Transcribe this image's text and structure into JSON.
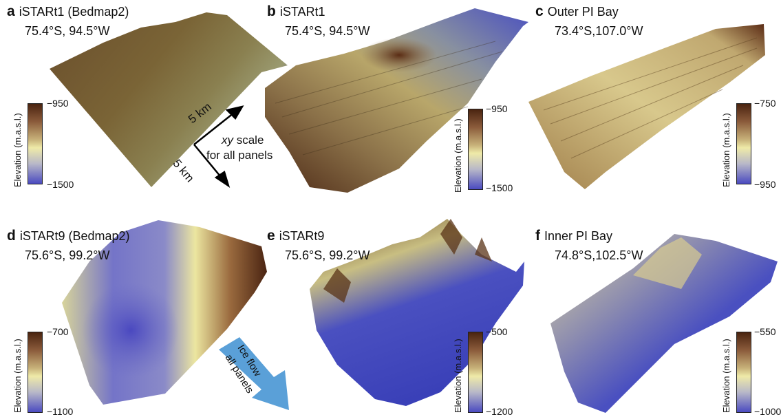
{
  "panels": [
    {
      "letter": "a",
      "title": "iSTARt1 (Bedmap2)",
      "coords": "75.4°S, 94.5°W",
      "cmax": "−950",
      "cmin": "−1500",
      "ylabel": "Elevation (m.a.s.l.)"
    },
    {
      "letter": "b",
      "title": "iSTARt1",
      "coords": "75.4°S, 94.5°W",
      "cmax": "−950",
      "cmin": "−1500",
      "ylabel": "Elevation (m.a.s.l.)"
    },
    {
      "letter": "c",
      "title": "Outer PI Bay",
      "coords": "73.4°S,107.0°W",
      "cmax": "−750",
      "cmin": "−950",
      "ylabel": "Elevation (m.a.s.l.)"
    },
    {
      "letter": "d",
      "title": "iSTARt9 (Bedmap2)",
      "coords": "75.6°S, 99.2°W",
      "cmax": "−700",
      "cmin": "−1100",
      "ylabel": "Elevation (m.a.s.l.)"
    },
    {
      "letter": "e",
      "title": "iSTARt9",
      "coords": "75.6°S, 99.2°W",
      "cmax": "−500",
      "cmin": "−1200",
      "ylabel": "Elevation (m.a.s.l.)"
    },
    {
      "letter": "f",
      "title": "Inner PI Bay",
      "coords": "74.8°S,102.5°W",
      "cmax": "−550",
      "cmin": "−1000",
      "ylabel": "Elevation (m.a.s.l.)"
    }
  ],
  "scale": {
    "km1": "5 km",
    "km2": "5 km",
    "xy": "xy",
    "scale_word": " scale",
    "line2": "for all panels"
  },
  "flow": {
    "line1": "Ice flow",
    "line2": "all panels"
  }
}
